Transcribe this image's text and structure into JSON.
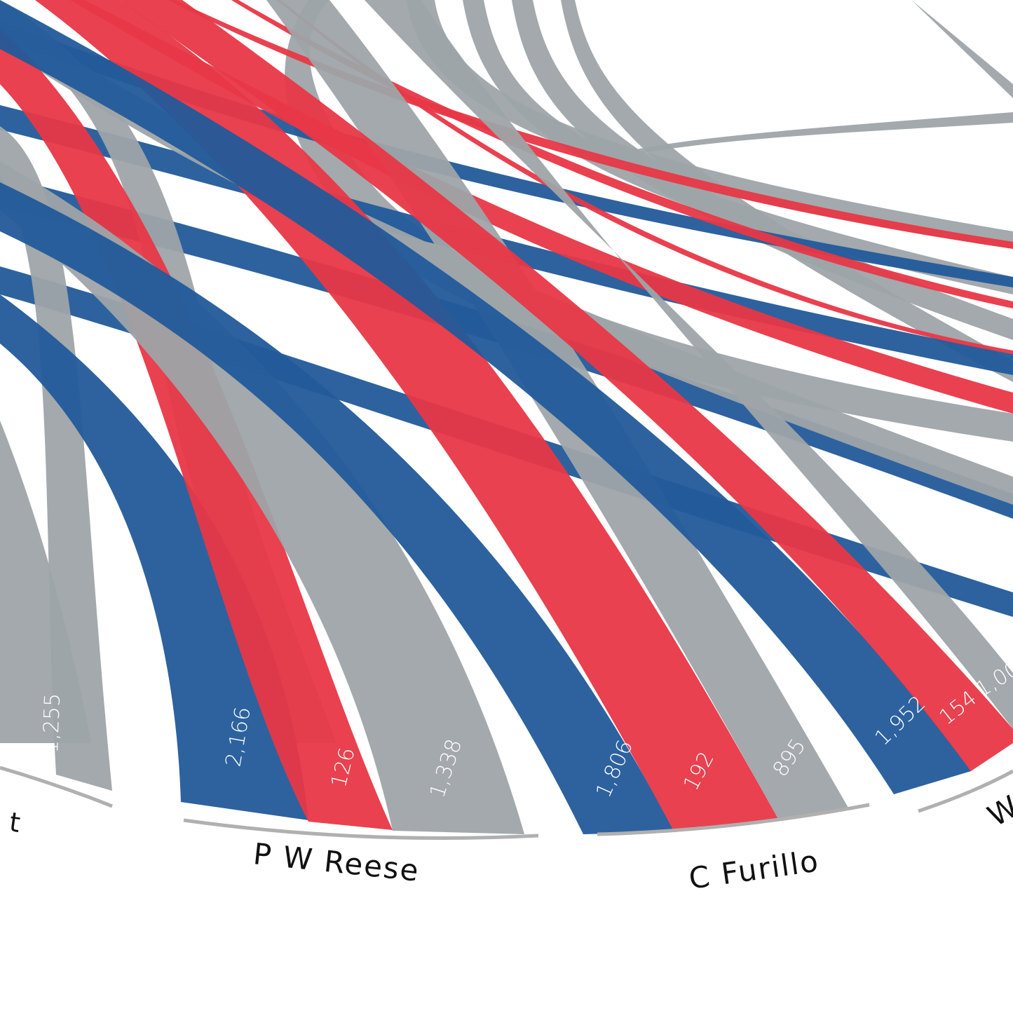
{
  "chart_data": {
    "type": "chord",
    "colors": {
      "blue": "#225a9a",
      "red": "#e83746",
      "gray": "#9ea4a8",
      "arc": "#b0b0b0",
      "text": "#111111"
    },
    "players": [
      {
        "name": "t",
        "segments": [
          {
            "color": "gray",
            "value": "1,255"
          }
        ]
      },
      {
        "name": "P W Reese",
        "segments": [
          {
            "color": "blue",
            "value": "2,166"
          },
          {
            "color": "red",
            "value": "126"
          },
          {
            "color": "gray",
            "value": "1,338"
          }
        ]
      },
      {
        "name": "C Furillo",
        "segments": [
          {
            "color": "blue",
            "value": "1,806"
          },
          {
            "color": "red",
            "value": "192"
          },
          {
            "color": "gray",
            "value": "895"
          }
        ]
      },
      {
        "name": "",
        "segments": [
          {
            "color": "blue",
            "value": "1,952"
          },
          {
            "color": "red",
            "value": "154"
          },
          {
            "color": "gray",
            "value": "1,00"
          }
        ]
      },
      {
        "name": "W",
        "segments": []
      }
    ]
  }
}
